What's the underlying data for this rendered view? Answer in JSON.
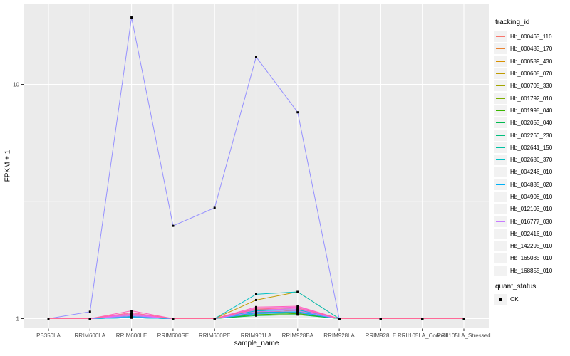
{
  "figure": {
    "background": "#FFFFFF",
    "panel_background": "#EBEBEB",
    "grid_color": "#FFFFFF",
    "tick_mark_color": "#333333",
    "tick_label_color": "#4D4D4D",
    "marker_color": "#000000",
    "legend_key_background": "#F2F2F2"
  },
  "chart_data": {
    "type": "line",
    "title": "",
    "xlabel": "sample_name",
    "ylabel": "FPKM + 1",
    "y_scale": "log10",
    "grid": true,
    "legend_position": "right",
    "color_legend_title": "tracking_id",
    "shape_legend_title": "quant_status",
    "shape_legend_label": "OK",
    "y_ticks": [
      {
        "label": "1",
        "value": 1
      },
      {
        "label": "10",
        "value": 10
      }
    ],
    "y_minor_ticks": [
      3.1623
    ],
    "categories": [
      "PB350LA",
      "RRIM600LA",
      "RRIM600LE",
      "RRIM600SE",
      "RRIM600PE",
      "RRIM901LA",
      "RRIM928BA",
      "RRIM928LA",
      "RRIM928LE",
      "RRII105LA_Control",
      "RRII105LA_Stressed"
    ],
    "series": [
      {
        "name": "Hb_000463_110",
        "color": "#F8766D",
        "values": [
          1,
          1,
          1.02,
          1,
          1,
          1.06,
          1.07,
          1,
          1,
          1,
          1
        ]
      },
      {
        "name": "Hb_000483_170",
        "color": "#EA8331",
        "values": [
          1,
          1,
          1.03,
          1,
          1,
          1.08,
          1.05,
          1,
          1,
          1,
          1
        ]
      },
      {
        "name": "Hb_000589_430",
        "color": "#D89000",
        "values": [
          1,
          1,
          1.02,
          1,
          1,
          1.05,
          1.09,
          1,
          1,
          1,
          1
        ]
      },
      {
        "name": "Hb_000608_070",
        "color": "#C09B00",
        "values": [
          1,
          1,
          1.05,
          1,
          1,
          1.2,
          1.3,
          1,
          1,
          1,
          1
        ]
      },
      {
        "name": "Hb_000705_330",
        "color": "#A3A500",
        "values": [
          1,
          1,
          1.04,
          1,
          1,
          1.1,
          1.08,
          1,
          1,
          1,
          1
        ]
      },
      {
        "name": "Hb_001792_010",
        "color": "#7CAE00",
        "values": [
          1,
          1,
          1.02,
          1,
          1,
          1.07,
          1.06,
          1,
          1,
          1,
          1
        ]
      },
      {
        "name": "Hb_001998_040",
        "color": "#39B600",
        "values": [
          1,
          1,
          1.01,
          1,
          1,
          1.04,
          1.05,
          1,
          1,
          1,
          1
        ]
      },
      {
        "name": "Hb_002053_040",
        "color": "#00BB4E",
        "values": [
          1,
          1,
          1.01,
          1,
          1,
          1.03,
          1.04,
          1,
          1,
          1,
          1
        ]
      },
      {
        "name": "Hb_002260_230",
        "color": "#00BF7D",
        "values": [
          1,
          1,
          1.01,
          1,
          1,
          1.05,
          1.06,
          1,
          1,
          1,
          1
        ]
      },
      {
        "name": "Hb_002641_150",
        "color": "#00C1A3",
        "values": [
          1,
          1,
          1.02,
          1,
          1,
          1.09,
          1.1,
          1,
          1,
          1,
          1
        ]
      },
      {
        "name": "Hb_002686_370",
        "color": "#00BFC4",
        "values": [
          1,
          1,
          1.02,
          1,
          1,
          1.27,
          1.3,
          1,
          1,
          1,
          1
        ]
      },
      {
        "name": "Hb_004246_010",
        "color": "#00BAE0",
        "values": [
          1,
          1,
          1.01,
          1,
          1,
          1.08,
          1.09,
          1,
          1,
          1,
          1
        ]
      },
      {
        "name": "Hb_004885_020",
        "color": "#00B0F6",
        "values": [
          1,
          1,
          1.01,
          1,
          1,
          1.06,
          1.07,
          1,
          1,
          1,
          1
        ]
      },
      {
        "name": "Hb_004908_010",
        "color": "#35A2FF",
        "values": [
          1,
          1,
          1.02,
          1,
          1,
          1.05,
          1.06,
          1,
          1,
          1,
          1
        ]
      },
      {
        "name": "Hb_012103_010",
        "color": "#9590FF",
        "values": [
          1,
          1.07,
          19.3,
          2.49,
          2.97,
          13.1,
          7.6,
          1,
          1,
          1,
          1
        ]
      },
      {
        "name": "Hb_016777_030",
        "color": "#C77CFF",
        "values": [
          1,
          1,
          1.03,
          1,
          1,
          1.07,
          1.08,
          1,
          1,
          1,
          1
        ]
      },
      {
        "name": "Hb_092416_010",
        "color": "#E76BF3",
        "values": [
          1,
          1,
          1.04,
          1,
          1,
          1.09,
          1.1,
          1,
          1,
          1,
          1
        ]
      },
      {
        "name": "Hb_142295_010",
        "color": "#FA62DB",
        "values": [
          1,
          1,
          1.05,
          1,
          1,
          1.11,
          1.12,
          1,
          1,
          1,
          1
        ]
      },
      {
        "name": "Hb_165085_010",
        "color": "#FF62BC",
        "values": [
          1,
          1,
          1.08,
          1,
          1,
          1.12,
          1.13,
          1,
          1,
          1,
          1
        ]
      },
      {
        "name": "Hb_168855_010",
        "color": "#FF6A98",
        "values": [
          1,
          1,
          1.06,
          1,
          1,
          1.1,
          1.11,
          1,
          1,
          1,
          1
        ]
      }
    ]
  }
}
